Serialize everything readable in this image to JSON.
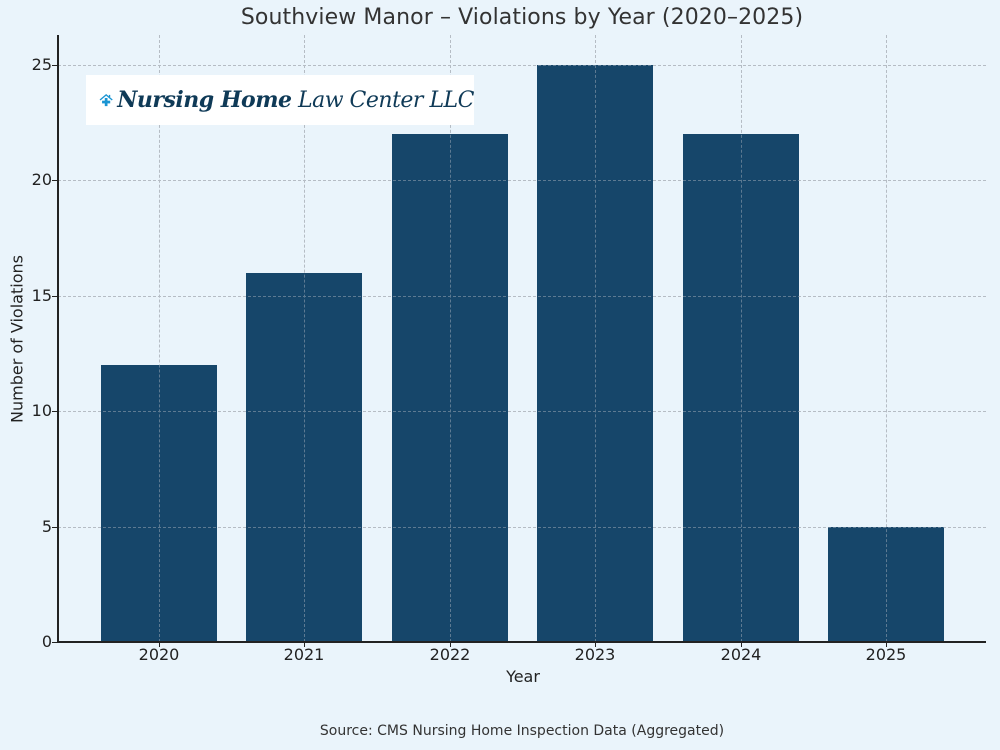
{
  "title": "Southview Manor – Violations by Year (2020–2025)",
  "logo": {
    "icon": "house-medical-cross-icon",
    "text_bold": "Nursing Home",
    "text_light": "Law Center LLC",
    "icon_color": "#1b95d3",
    "text_color": "#0f3a57"
  },
  "source_note": "Source: CMS Nursing Home Inspection Data (Aggregated)",
  "colors": {
    "bar": "#16466a",
    "background": "#eaf4fb",
    "grid": "#b5bcc4"
  },
  "chart_data": {
    "type": "bar",
    "title": "Southview Manor – Violations by Year (2020–2025)",
    "xlabel": "Year",
    "ylabel": "Number of Violations",
    "categories": [
      "2020",
      "2021",
      "2022",
      "2023",
      "2024",
      "2025"
    ],
    "values": [
      12,
      16,
      22,
      25,
      22,
      5
    ],
    "ylim": [
      0,
      26.3
    ],
    "yticks": [
      0,
      5,
      10,
      15,
      20,
      25
    ],
    "grid": true,
    "grid_style": "dashed",
    "legend": null,
    "annotation": "Source: CMS Nursing Home Inspection Data (Aggregated)"
  }
}
